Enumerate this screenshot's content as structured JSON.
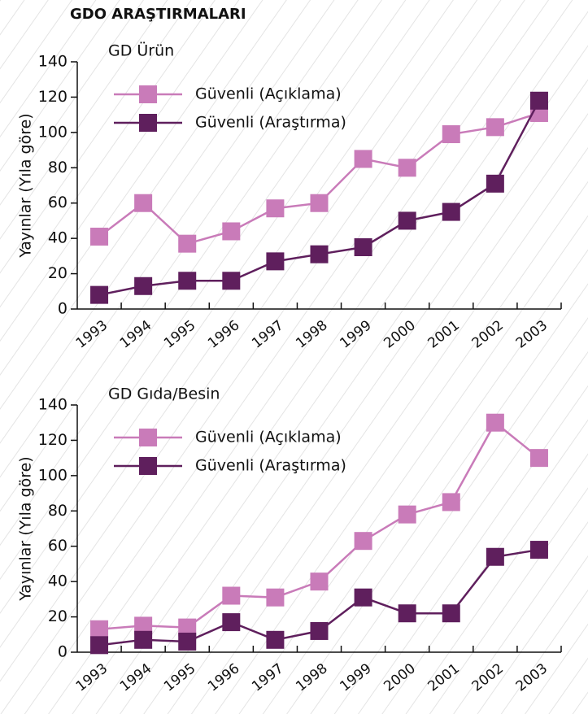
{
  "title": "GDO ARAŞTIRMALARI",
  "chart_data": [
    {
      "type": "line",
      "title": "GD Ürün",
      "y_label": "Yayınlar (Yıla göre)",
      "categories": [
        "1993",
        "1994",
        "1995",
        "1996",
        "1997",
        "1998",
        "1999",
        "2000",
        "2001",
        "2002",
        "2003"
      ],
      "series": [
        {
          "name": "Güvenli (Açıklama)",
          "color": "#c97bb9",
          "values": [
            41,
            60,
            37,
            44,
            57,
            60,
            85,
            80,
            99,
            103,
            111
          ]
        },
        {
          "name": "Güvenli (Araştırma)",
          "color": "#5f1f5d",
          "values": [
            8,
            13,
            16,
            16,
            27,
            31,
            35,
            50,
            55,
            71,
            118
          ]
        }
      ],
      "ylim": [
        0,
        140
      ],
      "yticks": [
        0,
        20,
        40,
        60,
        80,
        100,
        120,
        140
      ]
    },
    {
      "type": "line",
      "title": "GD Gıda/Besin",
      "y_label": "Yayınlar (Yıla göre)",
      "categories": [
        "1993",
        "1994",
        "1995",
        "1996",
        "1997",
        "1998",
        "1999",
        "2000",
        "2001",
        "2002",
        "2003"
      ],
      "series": [
        {
          "name": "Güvenli (Açıklama)",
          "color": "#c97bb9",
          "values": [
            13,
            15,
            14,
            32,
            31,
            40,
            63,
            78,
            85,
            130,
            110
          ]
        },
        {
          "name": "Güvenli (Araştırma)",
          "color": "#5f1f5d",
          "values": [
            4,
            7,
            6,
            17,
            7,
            12,
            31,
            22,
            22,
            54,
            58
          ]
        }
      ],
      "ylim": [
        0,
        140
      ],
      "yticks": [
        0,
        20,
        40,
        60,
        80,
        100,
        120,
        140
      ]
    }
  ]
}
